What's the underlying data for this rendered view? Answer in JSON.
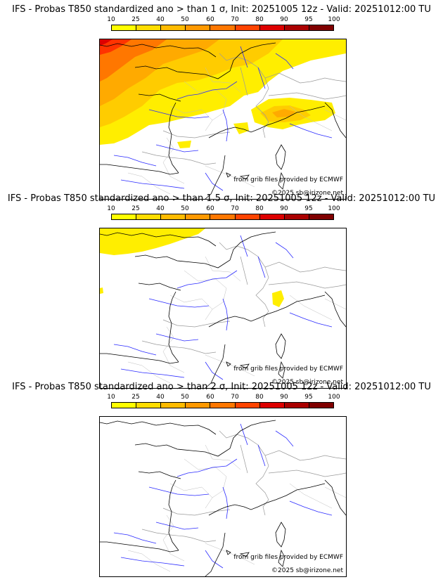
{
  "colorbar": {
    "ticks": [
      "10",
      "25",
      "40",
      "50",
      "60",
      "70",
      "80",
      "90",
      "95",
      "100"
    ],
    "colors": [
      "#ffff00",
      "#ffdd00",
      "#ffbb00",
      "#ff9900",
      "#ff7700",
      "#ff4400",
      "#dd0000",
      "#aa0000",
      "#800000"
    ]
  },
  "colors": {
    "coast": "#000000",
    "rivers": "#2a2aff",
    "borders": "#9a9a9a",
    "sea": "#ffffff"
  },
  "panels": [
    {
      "title": "IFS - Probas T850  standardized ano > than 1 σ, Init: 20251005 12z - Valid: 20251012:00 TU",
      "source_credit": "from grib files provided by ECMWF",
      "copyright": "©2025 sb@irizone.net"
    },
    {
      "title": "IFS - Probas T850  standardized ano > than 1.5 σ, Init: 20251005 12z - Valid: 20251012:00 TU",
      "source_credit": "from grib files provided by ECMWF",
      "copyright": "©2025 sb@irizone.net"
    },
    {
      "title": "IFS - Probas T850  standardized ano > than 2 σ, Init: 20251005 12z - Valid: 20251012:00 TU",
      "source_credit": "from grib files provided by ECMWF",
      "copyright": "©2025 sb@irizone.net"
    }
  ]
}
